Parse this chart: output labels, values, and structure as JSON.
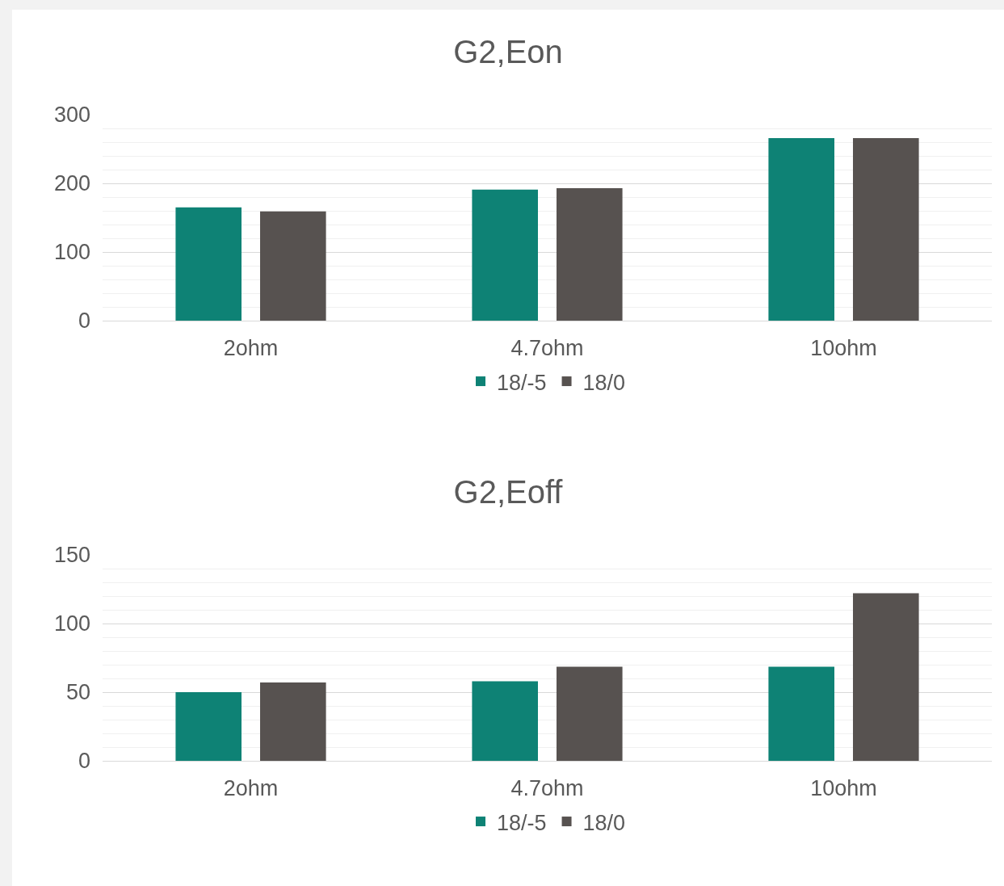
{
  "chart_data": [
    {
      "type": "bar",
      "title": "G2,Eon",
      "categories": [
        "2ohm",
        "4.7ohm",
        "10ohm"
      ],
      "series": [
        {
          "name": "18/-5",
          "color": "#0e8275",
          "values": [
            165,
            191,
            266
          ]
        },
        {
          "name": "18/0",
          "color": "#575250",
          "values": [
            159,
            193,
            266
          ]
        }
      ],
      "ylim": [
        0,
        300
      ],
      "yticks": [
        0,
        100,
        200,
        300
      ],
      "grid": "y",
      "legend": "bottom"
    },
    {
      "type": "bar",
      "title": "G2,Eoff",
      "categories": [
        "2ohm",
        "4.7ohm",
        "10ohm"
      ],
      "series": [
        {
          "name": "18/-5",
          "color": "#0e8275",
          "values": [
            50,
            58,
            68.5
          ]
        },
        {
          "name": "18/0",
          "color": "#575250",
          "values": [
            57,
            68.5,
            122
          ]
        }
      ],
      "ylim": [
        0,
        150
      ],
      "yticks": [
        0,
        50,
        100,
        150
      ],
      "grid": "y",
      "legend": "bottom"
    }
  ]
}
